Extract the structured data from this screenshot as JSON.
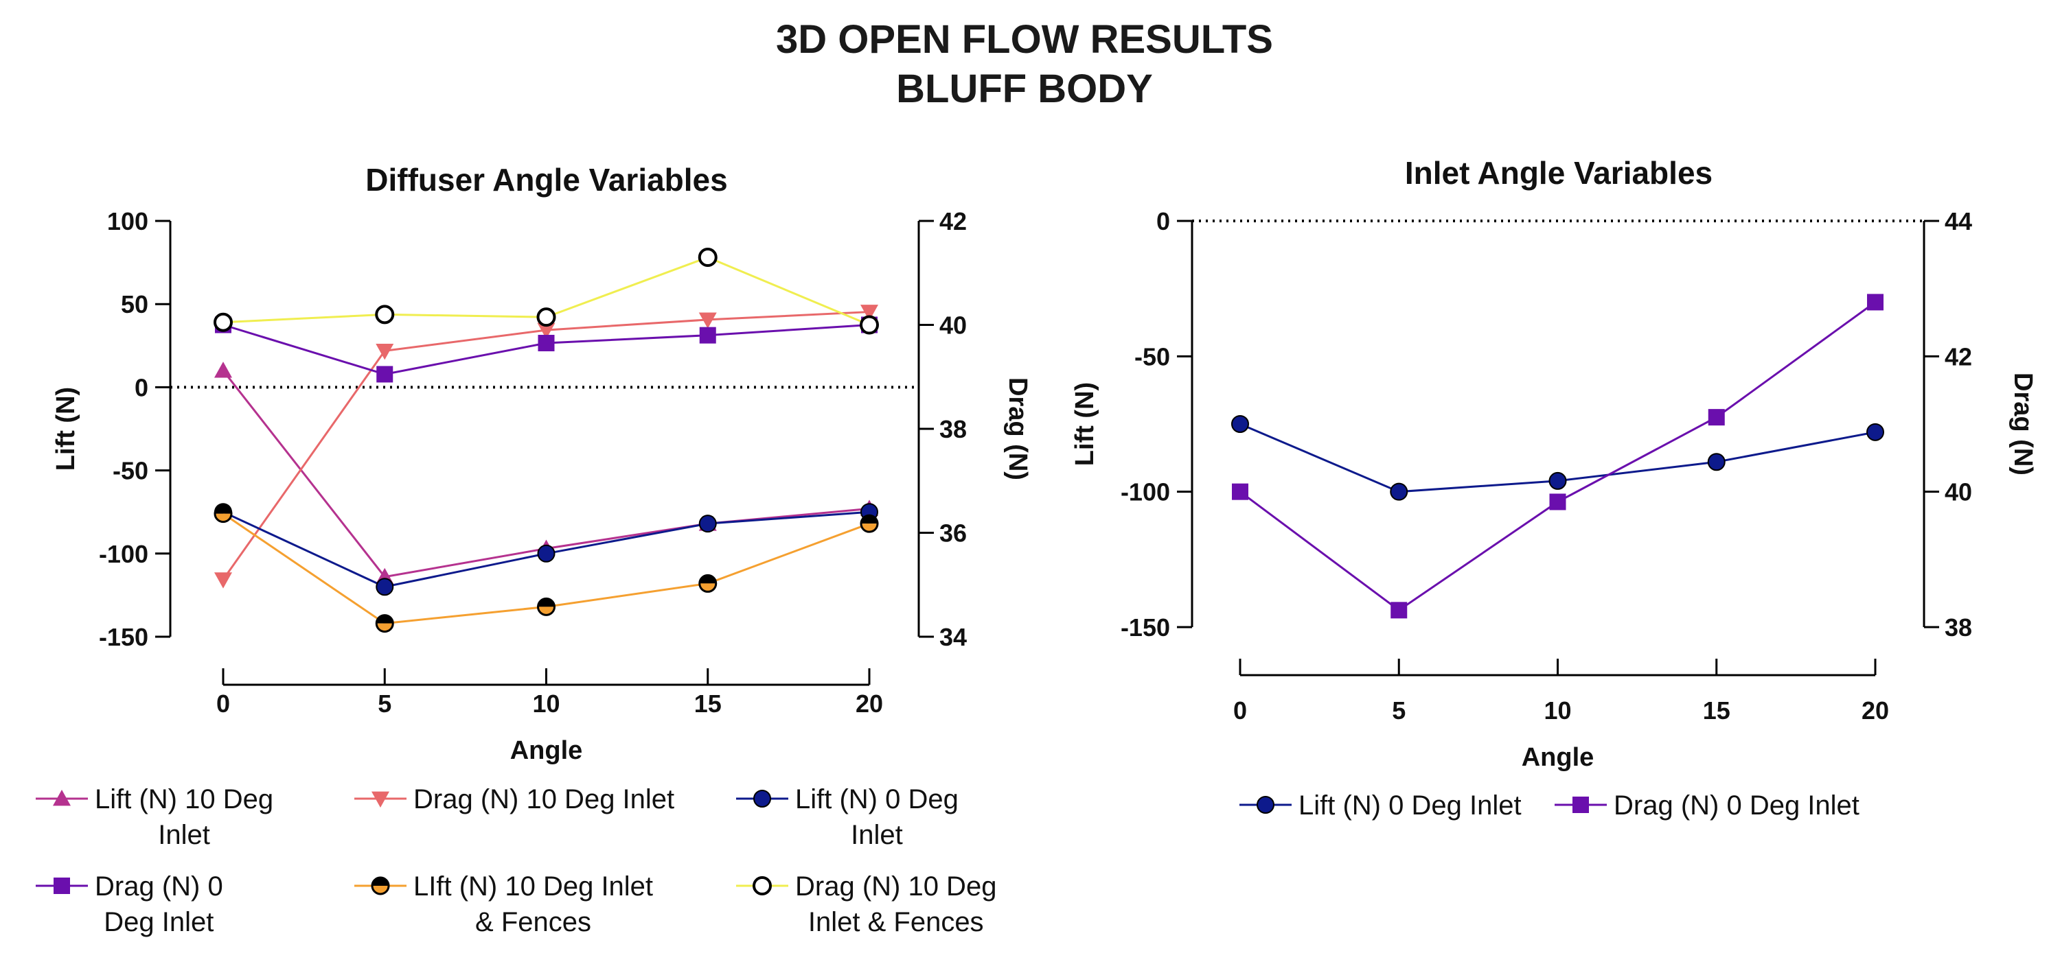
{
  "figure": {
    "title_line1": "3D OPEN FLOW RESULTS",
    "title_line2": "BLUFF BODY"
  },
  "chart_data": [
    {
      "type": "line",
      "title": "Diffuser Angle Variables",
      "xlabel": "Angle",
      "ylabel": "Lift (N)",
      "y2label": "Drag (N)",
      "x": [
        0,
        5,
        10,
        15,
        20
      ],
      "xticks": [
        "0",
        "5",
        "10",
        "15",
        "20"
      ],
      "ylim": [
        -150,
        100
      ],
      "yticks": [
        "100",
        "50",
        "0",
        "-50",
        "-100",
        "-150"
      ],
      "y2lim": [
        34,
        42
      ],
      "y2ticks": [
        "42",
        "40",
        "38",
        "36",
        "34"
      ],
      "zero_line": "dotted",
      "legend_position": "bottom",
      "series": [
        {
          "name": "Lift (N) 10 Deg Inlet",
          "legend": [
            "Lift (N) 10 Deg",
            "Inlet"
          ],
          "axis": "left",
          "marker": "triangle-up",
          "color": "#b5328f",
          "values": [
            10,
            -114,
            -97,
            -82,
            -73
          ]
        },
        {
          "name": "Drag (N) 10 Deg Inlet",
          "legend": [
            "Drag (N) 10 Deg Inlet"
          ],
          "axis": "right",
          "marker": "triangle-down",
          "color": "#e8686a",
          "values": [
            35.1,
            39.5,
            39.9,
            40.1,
            40.25
          ]
        },
        {
          "name": "Lift (N) 0 Deg Inlet",
          "legend": [
            "Lift (N) 0 Deg",
            "Inlet"
          ],
          "axis": "left",
          "marker": "circle",
          "color": "#0d1a8c",
          "values": [
            -75,
            -120,
            -100,
            -82,
            -75
          ]
        },
        {
          "name": "Drag (N) 0 Deg Inlet",
          "legend": [
            "Drag (N) 0",
            "Deg Inlet"
          ],
          "axis": "right",
          "marker": "square",
          "color": "#6a0fad",
          "values": [
            40.0,
            39.05,
            39.65,
            39.8,
            40.0
          ]
        },
        {
          "name": "LIft (N) 10 Deg Inlet & Fences",
          "legend": [
            "LIft (N) 10 Deg Inlet",
            "& Fences"
          ],
          "axis": "left",
          "marker": "half-circle",
          "color": "#f5a030",
          "values": [
            -76,
            -142,
            -132,
            -118,
            -82
          ]
        },
        {
          "name": "Drag (N) 10 Deg Inlet & Fences",
          "legend": [
            "Drag (N) 10 Deg",
            "Inlet & Fences"
          ],
          "axis": "right",
          "marker": "open-circle",
          "color": "#f0ee50",
          "values": [
            40.05,
            40.2,
            40.15,
            41.3,
            40.0
          ]
        }
      ]
    },
    {
      "type": "line",
      "title": "Inlet Angle Variables",
      "xlabel": "Angle",
      "ylabel": "Lift (N)",
      "y2label": "Drag (N)",
      "x": [
        0,
        5,
        10,
        15,
        20
      ],
      "xticks": [
        "0",
        "5",
        "10",
        "15",
        "20"
      ],
      "ylim": [
        -150,
        0
      ],
      "yticks": [
        "0",
        "-50",
        "-100",
        "-150"
      ],
      "y2lim": [
        38,
        44
      ],
      "y2ticks": [
        "44",
        "42",
        "40",
        "38"
      ],
      "zero_line": "dotted",
      "legend_position": "bottom",
      "series": [
        {
          "name": "Lift (N) 0 Deg Inlet",
          "legend": [
            "Lift (N) 0 Deg Inlet"
          ],
          "axis": "left",
          "marker": "circle",
          "color": "#0d1a8c",
          "values": [
            -75,
            -100,
            -96,
            -89,
            -78
          ]
        },
        {
          "name": "Drag (N) 0 Deg Inlet",
          "legend": [
            "Drag (N) 0 Deg Inlet"
          ],
          "axis": "right",
          "marker": "square",
          "color": "#6a0fad",
          "values": [
            40.0,
            38.25,
            39.85,
            41.1,
            42.8
          ]
        }
      ]
    }
  ]
}
